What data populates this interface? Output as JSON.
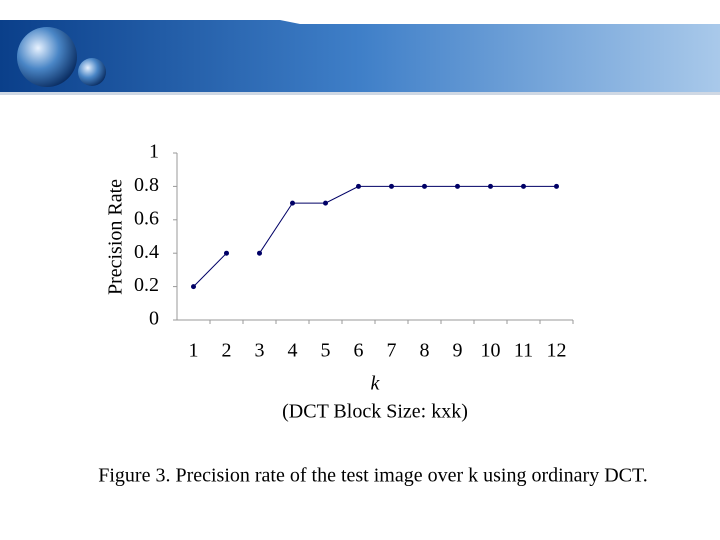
{
  "chart_data": {
    "type": "line",
    "y_label": "Precision Rate",
    "x_label": "k",
    "x_sublabel": "(DCT Block Size: kxk)",
    "caption": "Figure 3.  Precision rate of the test image over k using ordinary DCT.",
    "categories": [
      "1",
      "2",
      "3",
      "4",
      "5",
      "6",
      "7",
      "8",
      "9",
      "10",
      "11",
      "12"
    ],
    "series": [
      {
        "color": "#000066",
        "values": [
          0.2,
          0.4,
          null,
          null,
          null,
          null,
          null,
          null,
          null,
          null,
          null,
          null
        ]
      },
      {
        "color": "#000066",
        "values": [
          null,
          null,
          0.4,
          0.7,
          0.7,
          0.8,
          0.8,
          0.8,
          0.8,
          0.8,
          0.8,
          0.8
        ]
      }
    ],
    "ylim": [
      0,
      1
    ],
    "yticks": [
      0,
      0.2,
      0.4,
      0.6,
      0.8,
      1
    ],
    "grid": false
  }
}
